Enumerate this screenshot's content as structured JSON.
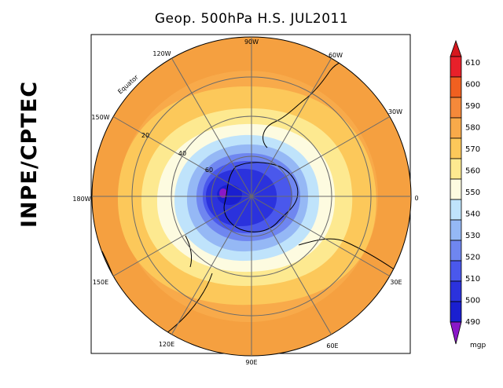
{
  "title": "Geop. 500hPa H.S. JUL2011",
  "agency": "INPE/CPTEC",
  "map": {
    "meridian_labels": [
      "90W",
      "60W",
      "30W",
      "0",
      "30E",
      "60E",
      "90E",
      "120E",
      "150E",
      "180W",
      "150W",
      "120W"
    ],
    "latitude_labels": [
      "Equator",
      "20",
      "40",
      "60"
    ]
  },
  "colorbar": {
    "unit": "mgp",
    "levels": [
      610,
      600,
      590,
      580,
      570,
      560,
      550,
      540,
      530,
      520,
      510,
      500,
      490
    ],
    "colors": [
      "#e8202a",
      "#f06020",
      "#f5893a",
      "#f8aa4a",
      "#fcc85a",
      "#fde990",
      "#fdfbe0",
      "#bfe3fb",
      "#95b8f5",
      "#6f86f0",
      "#4a58ec",
      "#2b32dd",
      "#1a1fd0"
    ],
    "top_triangle_color": "#d6181e",
    "bottom_triangle_color": "#8a18c8"
  }
}
